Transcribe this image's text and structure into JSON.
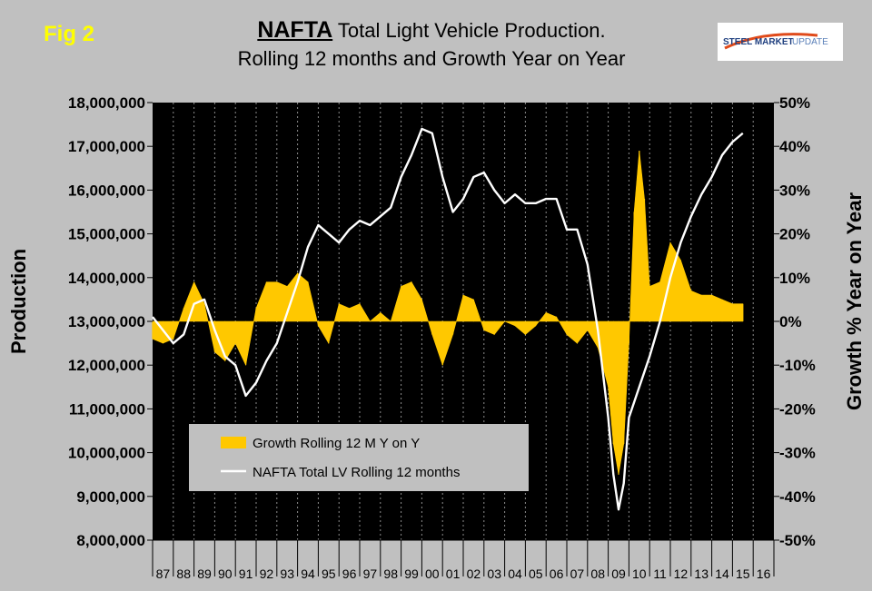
{
  "fig_label": "Fig 2",
  "title": {
    "brand": "NAFTA",
    "line1_rest": "Total Light Vehicle Production.",
    "line2": "Rolling 12 months and Growth Year on Year"
  },
  "logo": {
    "text_bold": "STEEL MARKET",
    "text_light": "UPDATE",
    "colors": {
      "bold": "#1f3f7f",
      "light": "#5a7fb8",
      "swoosh": "#e04a1a"
    }
  },
  "colors": {
    "background": "#c0c0c0",
    "plot_background": "#000000",
    "bars": "#ffc800",
    "line": "#ffffff",
    "grid": "#8c8c8c",
    "fig_label": "#ffff00"
  },
  "chart_data": {
    "type": "area",
    "title": "NAFTA Total Light Vehicle Production. Rolling 12 months and Growth Year on Year",
    "xlabel": "",
    "ylabel": "Production",
    "y2label": "Growth % Year on Year",
    "ylim": [
      8000000,
      18000000
    ],
    "y2lim": [
      -50,
      50
    ],
    "yticks": [
      "18,000,000",
      "17,000,000",
      "16,000,000",
      "15,000,000",
      "14,000,000",
      "13,000,000",
      "12,000,000",
      "11,000,000",
      "10,000,000",
      "9,000,000",
      "8,000,000"
    ],
    "y2ticks": [
      "50%",
      "40%",
      "30%",
      "20%",
      "10%",
      "0%",
      "-10%",
      "-20%",
      "-30%",
      "-40%",
      "-50%"
    ],
    "x_categories": [
      "87",
      "88",
      "89",
      "90",
      "91",
      "92",
      "93",
      "94",
      "95",
      "96",
      "97",
      "98",
      "99",
      "00",
      "01",
      "02",
      "03",
      "04",
      "05",
      "06",
      "07",
      "08",
      "09",
      "10",
      "11",
      "12",
      "13",
      "14",
      "15",
      "16"
    ],
    "grid": "vertical",
    "legend_position": "lower-left",
    "series": [
      {
        "name": "Growth Rolling 12 M Y on Y",
        "kind": "bar",
        "axis": "right",
        "x": [
          1987.0,
          1987.5,
          1988.0,
          1988.5,
          1989.0,
          1989.5,
          1990.0,
          1990.5,
          1991.0,
          1991.5,
          1992.0,
          1992.5,
          1993.0,
          1993.5,
          1994.0,
          1994.5,
          1995.0,
          1995.5,
          1996.0,
          1996.5,
          1997.0,
          1997.5,
          1998.0,
          1998.5,
          1999.0,
          1999.5,
          2000.0,
          2000.5,
          2001.0,
          2001.5,
          2002.0,
          2002.5,
          2003.0,
          2003.5,
          2004.0,
          2004.5,
          2005.0,
          2005.5,
          2006.0,
          2006.5,
          2007.0,
          2007.5,
          2008.0,
          2008.5,
          2009.0,
          2009.25,
          2009.5,
          2009.75,
          2010.0,
          2010.25,
          2010.5,
          2010.75,
          2011.0,
          2011.5,
          2012.0,
          2012.5,
          2013.0,
          2013.5,
          2014.0,
          2014.5,
          2015.0,
          2015.5
        ],
        "values": [
          -4,
          -5,
          -4,
          3,
          9,
          4,
          -7,
          -9,
          -5,
          -10,
          3,
          9,
          9,
          8,
          11,
          9,
          -1,
          -5,
          4,
          3,
          4,
          0,
          2,
          0,
          8,
          9,
          5,
          -3,
          -10,
          -3,
          6,
          5,
          -2,
          -3,
          0,
          -1,
          -3,
          -1,
          2,
          1,
          -3,
          -5,
          -2,
          -6,
          -15,
          -28,
          -35,
          -28,
          -5,
          25,
          39,
          28,
          8,
          9,
          18,
          14,
          7,
          6,
          6,
          5,
          4,
          4
        ]
      },
      {
        "name": "NAFTA Total LV Rolling 12 months",
        "kind": "line",
        "axis": "left",
        "x": [
          1987.0,
          1987.5,
          1988.0,
          1988.5,
          1989.0,
          1989.5,
          1990.0,
          1990.5,
          1991.0,
          1991.5,
          1992.0,
          1992.5,
          1993.0,
          1993.5,
          1994.0,
          1994.5,
          1995.0,
          1995.5,
          1996.0,
          1996.5,
          1997.0,
          1997.5,
          1998.0,
          1998.5,
          1999.0,
          1999.5,
          2000.0,
          2000.5,
          2001.0,
          2001.5,
          2002.0,
          2002.5,
          2003.0,
          2003.5,
          2004.0,
          2004.5,
          2005.0,
          2005.5,
          2006.0,
          2006.5,
          2007.0,
          2007.5,
          2008.0,
          2008.5,
          2009.0,
          2009.25,
          2009.5,
          2009.75,
          2010.0,
          2010.5,
          2011.0,
          2011.5,
          2012.0,
          2012.5,
          2013.0,
          2013.5,
          2014.0,
          2014.5,
          2015.0,
          2015.5
        ],
        "values": [
          13100000,
          12800000,
          12500000,
          12700000,
          13400000,
          13500000,
          12800000,
          12200000,
          12000000,
          11300000,
          11600000,
          12100000,
          12500000,
          13200000,
          13900000,
          14700000,
          15200000,
          15000000,
          14800000,
          15100000,
          15300000,
          15200000,
          15400000,
          15600000,
          16300000,
          16800000,
          17400000,
          17300000,
          16300000,
          15500000,
          15800000,
          16300000,
          16400000,
          16000000,
          15700000,
          15900000,
          15700000,
          15700000,
          15800000,
          15800000,
          15100000,
          15100000,
          14300000,
          12800000,
          10800000,
          9500000,
          8700000,
          9300000,
          10800000,
          11500000,
          12200000,
          13000000,
          14000000,
          14800000,
          15400000,
          15900000,
          16300000,
          16800000,
          17100000,
          17300000
        ]
      }
    ]
  }
}
